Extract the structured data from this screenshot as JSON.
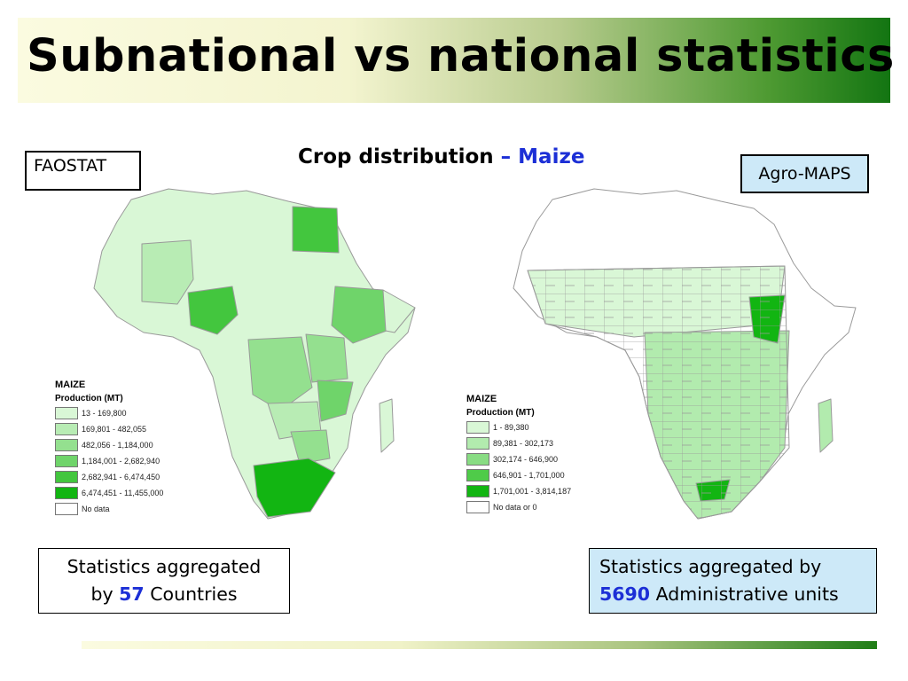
{
  "title": "Subnational vs national statistics",
  "subtitle": {
    "prefix": "Crop distribution",
    "separator": " – ",
    "crop": "Maize"
  },
  "labels": {
    "left_source": "FAOSTAT",
    "right_source": "Agro-MAPS"
  },
  "legend_left": {
    "title": "MAIZE",
    "subtitle": "Production (MT)",
    "classes": [
      {
        "label": "13 - 169,800",
        "color": "#d9f7d6"
      },
      {
        "label": "169,801 - 482,055",
        "color": "#b8ecb4"
      },
      {
        "label": "482,056 - 1,184,000",
        "color": "#94e08f"
      },
      {
        "label": "1,184,001 - 2,682,940",
        "color": "#6fd46a"
      },
      {
        "label": "2,682,941 - 6,474,450",
        "color": "#43c63e"
      },
      {
        "label": "6,474,451 - 11,455,000",
        "color": "#12b512"
      },
      {
        "label": "No data",
        "color": "#ffffff"
      }
    ]
  },
  "legend_right": {
    "title": "MAIZE",
    "subtitle": "Production (MT)",
    "classes": [
      {
        "label": "1 - 89,380",
        "color": "#d9f7d6"
      },
      {
        "label": "89,381 - 302,173",
        "color": "#b2ebae"
      },
      {
        "label": "302,174 - 646,900",
        "color": "#88dc83"
      },
      {
        "label": "646,901 - 1,701,000",
        "color": "#4fcb49"
      },
      {
        "label": "1,701,001 - 3,814,187",
        "color": "#12b512"
      },
      {
        "label": "No data or 0",
        "color": "#ffffff"
      }
    ]
  },
  "info_left": {
    "line1": "Statistics aggregated",
    "line2_prefix": "by",
    "count": "57",
    "line2_suffix": "Countries"
  },
  "info_right": {
    "line1": "Statistics aggregated by",
    "count": "5690",
    "line2_suffix": "Administrative units"
  }
}
